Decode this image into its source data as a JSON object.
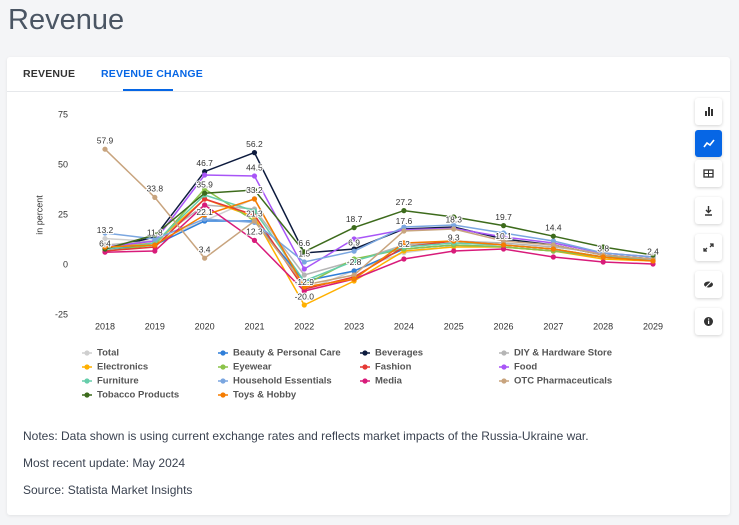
{
  "header": {
    "title": "Revenue"
  },
  "tabs": [
    "REVENUE",
    "REVENUE CHANGE"
  ],
  "chart_data": {
    "type": "line",
    "ylabel": "in percent",
    "categories": [
      "2018",
      "2019",
      "2020",
      "2021",
      "2022",
      "2023",
      "2024",
      "2025",
      "2026",
      "2027",
      "2028",
      "2029"
    ],
    "ylim": [
      -25,
      75
    ],
    "yticks": [
      -25,
      0,
      25,
      50,
      75
    ],
    "series": [
      {
        "name": "Total",
        "color": "#cfcfcf",
        "values": [
          13.2,
          11.8,
          22.1,
          33.2,
          -12.9,
          -2.8,
          6.2,
          9.3,
          10.1,
          8,
          3.8,
          2.4
        ],
        "value_labels": [
          "13.2",
          "11.8",
          "22.1",
          "33.2",
          "-12.9",
          "-2.8",
          "6.2",
          "9.3",
          "10.1",
          null,
          "3.8",
          "2.4"
        ]
      },
      {
        "name": "Beauty & Personal Care",
        "color": "#2f7ed8",
        "values": [
          8,
          10,
          22,
          22,
          -8,
          -3,
          8,
          10,
          9,
          7,
          4,
          3
        ]
      },
      {
        "name": "Beverages",
        "color": "#0d1b3e",
        "values": [
          8,
          14,
          46.7,
          56.2,
          6,
          8,
          18,
          19,
          13,
          10,
          5,
          3
        ],
        "value_labels": [
          null,
          null,
          "46.7",
          "56.2",
          null,
          null,
          null,
          null,
          null,
          null,
          null,
          null
        ]
      },
      {
        "name": "DIY & Hardware Store",
        "color": "#b5b5b5",
        "values": [
          10,
          12,
          30,
          28,
          -5,
          2,
          10,
          12,
          11,
          9,
          6,
          4
        ]
      },
      {
        "name": "Electronics",
        "color": "#ffb000",
        "values": [
          9,
          11,
          33,
          24,
          -20,
          -8,
          7,
          9,
          9,
          7,
          3,
          2
        ],
        "value_labels": [
          null,
          null,
          null,
          null,
          "-20.0",
          null,
          null,
          null,
          null,
          null,
          null,
          null
        ]
      },
      {
        "name": "Eyewear",
        "color": "#8bc34a",
        "values": [
          7,
          10,
          38,
          22,
          -10,
          3,
          8,
          10,
          9,
          7,
          4,
          3
        ]
      },
      {
        "name": "Fashion",
        "color": "#e53935",
        "values": [
          7,
          9,
          33,
          25,
          -12,
          -6,
          9,
          12,
          10,
          8,
          4,
          2
        ]
      },
      {
        "name": "Food",
        "color": "#a855f7",
        "values": [
          9,
          12,
          45,
          44.5,
          -2,
          13,
          17.6,
          18.3,
          14,
          11,
          6,
          4
        ],
        "value_labels": [
          null,
          null,
          null,
          "44.5",
          null,
          null,
          "17.6",
          "18.3",
          null,
          null,
          null,
          null
        ]
      },
      {
        "name": "Furniture",
        "color": "#66cdaa",
        "values": [
          8,
          11,
          35,
          27,
          -8,
          2,
          9,
          11,
          10,
          8,
          4,
          3
        ]
      },
      {
        "name": "Household Essentials",
        "color": "#7aa6e0",
        "values": [
          16,
          13,
          23,
          21.3,
          1.5,
          6.9,
          19,
          20,
          16,
          12,
          6,
          4
        ],
        "value_labels": [
          null,
          null,
          null,
          "21.3",
          "1.5",
          "6.9",
          null,
          null,
          null,
          null,
          null,
          null
        ]
      },
      {
        "name": "Media",
        "color": "#d81b7a",
        "values": [
          6.4,
          7,
          30,
          12.3,
          -13,
          -7,
          3,
          7,
          8,
          4,
          1.5,
          0.5
        ],
        "value_labels": [
          "6.4",
          null,
          null,
          "12.3",
          null,
          null,
          null,
          null,
          null,
          null,
          null,
          null
        ]
      },
      {
        "name": "OTC Pharmaceuticals",
        "color": "#c8a47e",
        "values": [
          57.9,
          33.8,
          3.4,
          22,
          -10,
          -5,
          17,
          18,
          12,
          10,
          5,
          3
        ],
        "value_labels": [
          "57.9",
          "33.8",
          "3.4",
          null,
          null,
          null,
          null,
          null,
          null,
          null,
          null,
          null
        ]
      },
      {
        "name": "Tobacco Products",
        "color": "#3d6b1c",
        "values": [
          8,
          15,
          35.9,
          37.5,
          6.6,
          18.7,
          27.2,
          24,
          19.7,
          14.4,
          9,
          5
        ],
        "value_labels": [
          null,
          null,
          "35.9",
          null,
          "6.6",
          "18.7",
          "27.2",
          null,
          "19.7",
          "14.4",
          null,
          null
        ]
      },
      {
        "name": "Toys & Hobby",
        "color": "#f57c00",
        "values": [
          9,
          10,
          25,
          33,
          -11,
          -7,
          11,
          12,
          10,
          8,
          4,
          2
        ]
      }
    ]
  },
  "notes": [
    "Notes: Data shown is using current exchange rates and reflects market impacts of the Russia-Ukraine war.",
    "Most recent update: May 2024",
    "Source: Statista Market Insights"
  ]
}
